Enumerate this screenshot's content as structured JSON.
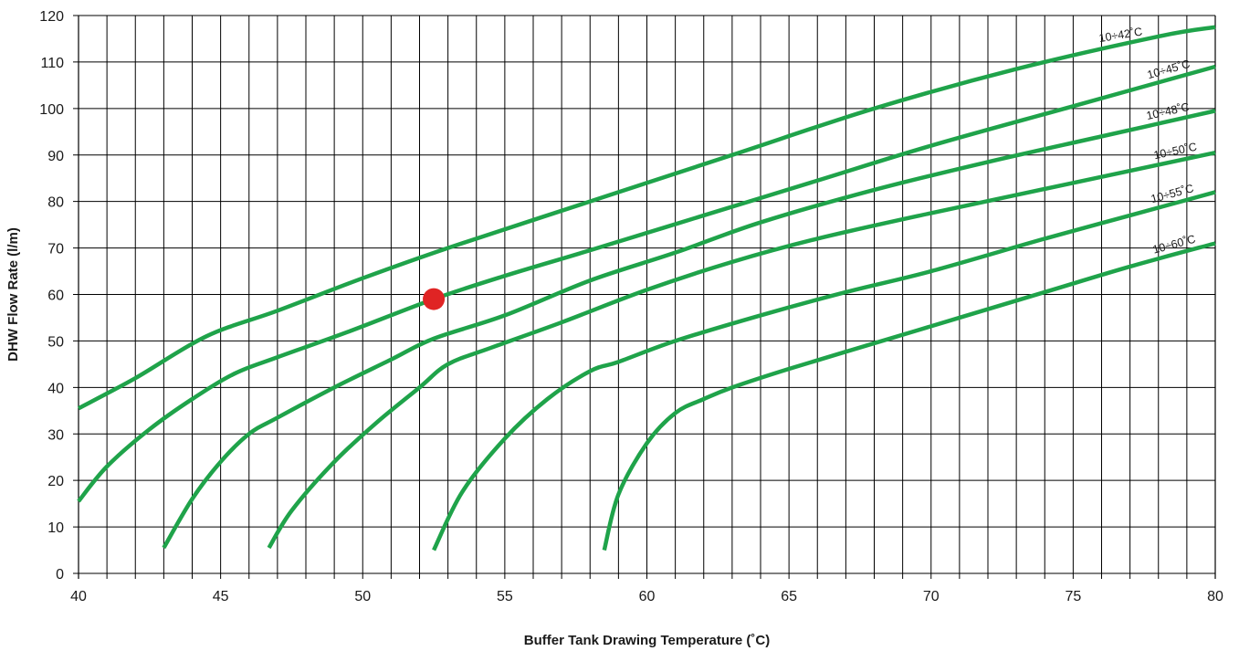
{
  "chart_data": {
    "type": "line",
    "title": "",
    "xlabel": "Buffer Tank Drawing Temperature (˚C)",
    "ylabel": "DHW Flow Rate (l/m)",
    "xlim": [
      40,
      80
    ],
    "ylim": [
      0,
      120
    ],
    "x_ticks": [
      "40",
      "45",
      "50",
      "55",
      "60",
      "65",
      "70",
      "75",
      "80"
    ],
    "y_ticks": [
      "0",
      "10",
      "20",
      "30",
      "40",
      "50",
      "60",
      "70",
      "80",
      "90",
      "100",
      "110",
      "120"
    ],
    "x_minor_step": 1,
    "y_minor_step": 10,
    "grid": true,
    "legend": "inline labels at right end of curves",
    "line_color": "#1fa34a",
    "series": [
      {
        "name": "10÷42˚C",
        "x": [
          40,
          42,
          44.5,
          47,
          50,
          53,
          58,
          63,
          68,
          73,
          78,
          80
        ],
        "y": [
          35.5,
          42,
          51,
          56.5,
          63.5,
          70,
          80,
          90,
          100,
          108.5,
          115.5,
          117.5
        ]
      },
      {
        "name": "10÷45˚C",
        "x": [
          40,
          41,
          42.5,
          44,
          45.5,
          47,
          49.5,
          52.5,
          55,
          58,
          62,
          66,
          70,
          75,
          80
        ],
        "y": [
          15.5,
          23,
          31,
          37.5,
          43,
          46.5,
          52,
          59,
          64,
          69.5,
          77,
          84.5,
          92,
          100.5,
          109
        ]
      },
      {
        "name": "10÷48˚C",
        "x": [
          43,
          44,
          45,
          46,
          47,
          49,
          51,
          52.5,
          55,
          58,
          61,
          64,
          68,
          72,
          76,
          80
        ],
        "y": [
          5.5,
          16,
          24,
          30,
          33.5,
          40,
          46,
          50.5,
          55.5,
          63,
          69,
          75.5,
          82.5,
          88.5,
          94,
          99.5
        ]
      },
      {
        "name": "10÷50˚C",
        "x": [
          46.7,
          47.5,
          49,
          50.5,
          52,
          53,
          54.5,
          57,
          60,
          63,
          66,
          70,
          75,
          80
        ],
        "y": [
          5.5,
          13.5,
          24,
          32.5,
          40,
          45,
          48.5,
          54,
          61,
          67,
          72,
          77.5,
          84,
          90.5
        ]
      },
      {
        "name": "10÷55˚C",
        "x": [
          52.5,
          53.5,
          55,
          56.5,
          58,
          59,
          61,
          64,
          67,
          70,
          74,
          77,
          80
        ],
        "y": [
          5,
          17.5,
          29,
          37.5,
          43.5,
          45.5,
          50,
          55.5,
          60.5,
          65,
          72,
          77,
          82
        ]
      },
      {
        "name": "10÷60˚C",
        "x": [
          58.5,
          59,
          60,
          61,
          62,
          63,
          65,
          68,
          71,
          74,
          77,
          80
        ],
        "y": [
          5,
          17,
          28,
          34.5,
          37.5,
          40,
          44,
          49.5,
          55,
          60.5,
          66,
          71
        ]
      }
    ],
    "highlight_point": {
      "x": 52.5,
      "y": 59,
      "color": "#e02424"
    }
  }
}
